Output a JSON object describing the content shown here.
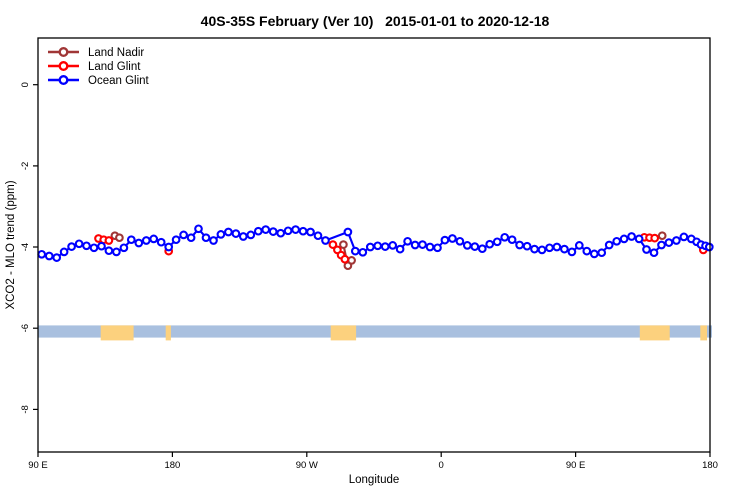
{
  "title": "40S-35S February (Ver 10)   2015-01-01 to 2020-12-18",
  "colors": {
    "background": "#ffffff",
    "axis": "#000000",
    "land_nadir": "#A03636",
    "land_glint": "#FF0000",
    "ocean_glint": "#0000FF",
    "strip_ocean": "#A9C0DF",
    "strip_land": "#FCD17E"
  },
  "chart_data": {
    "type": "line",
    "title": "40S-35S February (Ver 10)   2015-01-01 to 2020-12-18",
    "xlabel": "Longitude",
    "ylabel": "XCO2 - MLO trend (ppm)",
    "x_range": [
      0,
      450
    ],
    "y_range": [
      1.15,
      -9.05
    ],
    "grid": "off",
    "legend_position": "top-left",
    "x_ticks": [
      {
        "pos": 0,
        "label": "90 E"
      },
      {
        "pos": 90,
        "label": "180"
      },
      {
        "pos": 180,
        "label": "90 W"
      },
      {
        "pos": 270,
        "label": "0"
      },
      {
        "pos": 360,
        "label": "90 E"
      },
      {
        "pos": 450,
        "label": "180"
      }
    ],
    "y_ticks": [
      {
        "pos": 0,
        "label": "0"
      },
      {
        "pos": -2,
        "label": "-2"
      },
      {
        "pos": -4,
        "label": "-4"
      },
      {
        "pos": -6,
        "label": "-6"
      },
      {
        "pos": -8,
        "label": "-8"
      }
    ],
    "map_strip": {
      "ocean_color": "#A9C0DF",
      "land_color": "#FCD17E",
      "y_top": -5.93,
      "y_bottom": -6.23,
      "land_y_bottom": -6.3,
      "land_segments": [
        [
          42,
          64
        ],
        [
          85.5,
          89
        ],
        [
          196,
          213
        ],
        [
          403,
          423
        ],
        [
          443.5,
          448
        ]
      ]
    },
    "series": [
      {
        "name": "Land Nadir",
        "color": "#A03636",
        "clusters": [
          [
            [
              51.5,
              -3.72
            ],
            [
              54.5,
              -3.77
            ]
          ],
          [
            [
              204.5,
              -3.94
            ],
            [
              207.5,
              -4.46
            ],
            [
              210,
              -4.33
            ]
          ],
          [
            [
              418,
              -3.72
            ]
          ]
        ]
      },
      {
        "name": "Land Glint",
        "color": "#FF0000",
        "clusters": [
          [
            [
              40.5,
              -3.79
            ],
            [
              44,
              -3.82
            ],
            [
              47.5,
              -3.84
            ]
          ],
          [
            [
              87.5,
              -4.1
            ]
          ],
          [
            [
              197.5,
              -3.94
            ],
            [
              200.5,
              -4.07
            ],
            [
              203,
              -4.2
            ],
            [
              205.5,
              -4.3
            ]
          ],
          [
            [
              406,
              -3.76
            ],
            [
              409.5,
              -3.77
            ],
            [
              413,
              -3.78
            ]
          ],
          [
            [
              445.5,
              -4.07
            ]
          ]
        ]
      },
      {
        "name": "Ocean Glint",
        "color": "#0000FF",
        "clusters": [
          [
            [
              2.5,
              -4.18
            ],
            [
              7.5,
              -4.22
            ],
            [
              12.5,
              -4.26
            ],
            [
              17.5,
              -4.12
            ],
            [
              22.5,
              -3.99
            ],
            [
              27.5,
              -3.92
            ],
            [
              32.5,
              -3.97
            ],
            [
              37.5,
              -4.02
            ],
            [
              42.5,
              -3.98
            ],
            [
              47.5,
              -4.09
            ],
            [
              52.5,
              -4.12
            ],
            [
              57.5,
              -4.02
            ],
            [
              62.5,
              -3.82
            ],
            [
              67.5,
              -3.9
            ],
            [
              72.5,
              -3.84
            ],
            [
              77.5,
              -3.8
            ],
            [
              82.5,
              -3.88
            ],
            [
              87.5,
              -4.0
            ],
            [
              92.5,
              -3.82
            ],
            [
              97.5,
              -3.7
            ],
            [
              102.5,
              -3.77
            ],
            [
              107.5,
              -3.55
            ],
            [
              112.5,
              -3.77
            ],
            [
              117.5,
              -3.84
            ],
            [
              122.5,
              -3.69
            ],
            [
              127.5,
              -3.63
            ],
            [
              132.5,
              -3.67
            ],
            [
              137.5,
              -3.74
            ],
            [
              142.5,
              -3.7
            ],
            [
              147.5,
              -3.61
            ],
            [
              152.5,
              -3.57
            ],
            [
              157.5,
              -3.62
            ],
            [
              162.5,
              -3.66
            ],
            [
              167.5,
              -3.6
            ],
            [
              172.5,
              -3.57
            ],
            [
              177.5,
              -3.61
            ],
            [
              182.5,
              -3.63
            ],
            [
              187.5,
              -3.72
            ],
            [
              192.5,
              -3.84
            ],
            [
              207.5,
              -3.63
            ],
            [
              212.5,
              -4.1
            ],
            [
              217.5,
              -4.13
            ],
            [
              222.5,
              -4.0
            ],
            [
              227.5,
              -3.97
            ],
            [
              232.5,
              -3.99
            ],
            [
              237.5,
              -3.96
            ],
            [
              242.5,
              -4.05
            ],
            [
              247.5,
              -3.86
            ],
            [
              252.5,
              -3.95
            ],
            [
              257.5,
              -3.94
            ],
            [
              262.5,
              -4.0
            ],
            [
              267.5,
              -4.02
            ],
            [
              272.5,
              -3.83
            ],
            [
              277.5,
              -3.79
            ],
            [
              282.5,
              -3.86
            ],
            [
              287.5,
              -3.96
            ],
            [
              292.5,
              -3.99
            ],
            [
              297.5,
              -4.04
            ],
            [
              302.5,
              -3.93
            ],
            [
              307.5,
              -3.87
            ],
            [
              312.5,
              -3.76
            ],
            [
              317.5,
              -3.82
            ],
            [
              322.5,
              -3.95
            ],
            [
              327.5,
              -3.98
            ],
            [
              332.5,
              -4.05
            ],
            [
              337.5,
              -4.07
            ],
            [
              342.5,
              -4.02
            ],
            [
              347.5,
              -4.0
            ],
            [
              352.5,
              -4.05
            ],
            [
              357.5,
              -4.12
            ],
            [
              362.5,
              -3.96
            ],
            [
              367.5,
              -4.1
            ],
            [
              372.5,
              -4.17
            ],
            [
              377.5,
              -4.14
            ],
            [
              382.5,
              -3.95
            ],
            [
              387.5,
              -3.86
            ],
            [
              392.5,
              -3.8
            ],
            [
              397.5,
              -3.74
            ],
            [
              402.5,
              -3.8
            ],
            [
              407.5,
              -4.06
            ],
            [
              412.5,
              -4.14
            ],
            [
              417.5,
              -3.95
            ],
            [
              422.5,
              -3.89
            ],
            [
              427.5,
              -3.84
            ],
            [
              432.5,
              -3.75
            ],
            [
              437.5,
              -3.8
            ],
            [
              441,
              -3.87
            ],
            [
              444,
              -3.94
            ],
            [
              447,
              -3.97
            ],
            [
              449.5,
              -4.0
            ]
          ]
        ]
      }
    ]
  },
  "legend": {
    "items": [
      {
        "label": "Land Nadir",
        "color": "#A03636"
      },
      {
        "label": "Land Glint",
        "color": "#FF0000"
      },
      {
        "label": "Ocean Glint",
        "color": "#0000FF"
      }
    ]
  }
}
